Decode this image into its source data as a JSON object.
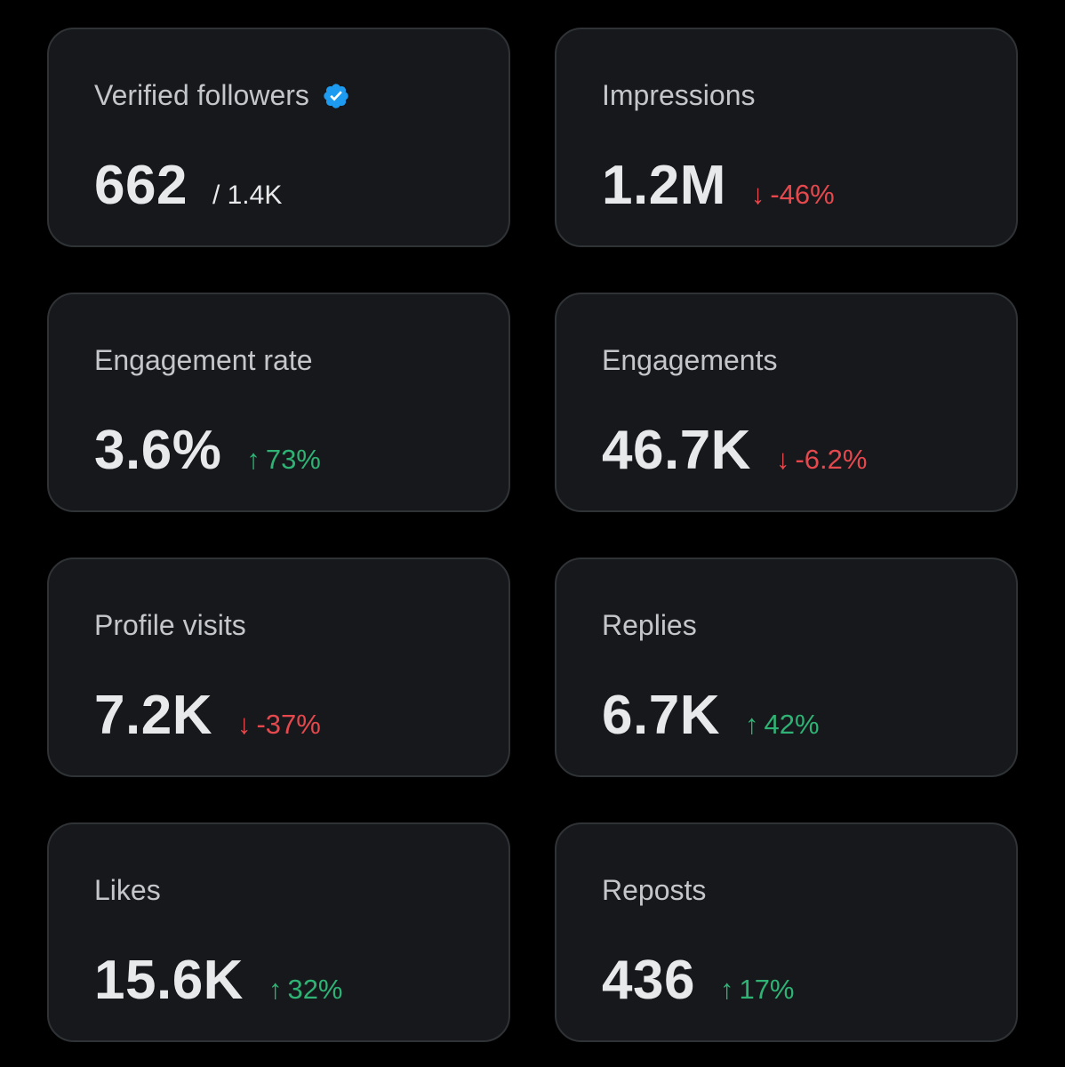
{
  "colors": {
    "background": "#000000",
    "card": "#16181c",
    "card_border": "#2f3336",
    "verified_badge": "#1d9bf0",
    "positive": "#2fb374",
    "negative": "#e5484d"
  },
  "cards": [
    {
      "label": "Verified followers",
      "value": "662",
      "total": "/ 1.4K",
      "icon": "verified-badge-icon"
    },
    {
      "label": "Impressions",
      "value": "1.2M",
      "arrow": "↓",
      "change": "-46%",
      "direction": "down"
    },
    {
      "label": "Engagement rate",
      "value": "3.6%",
      "arrow": "↑",
      "change": "73%",
      "direction": "up"
    },
    {
      "label": "Engagements",
      "value": "46.7K",
      "arrow": "↓",
      "change": "-6.2%",
      "direction": "down"
    },
    {
      "label": "Profile visits",
      "value": "7.2K",
      "arrow": "↓",
      "change": "-37%",
      "direction": "down"
    },
    {
      "label": "Replies",
      "value": "6.7K",
      "arrow": "↑",
      "change": "42%",
      "direction": "up"
    },
    {
      "label": "Likes",
      "value": "15.6K",
      "arrow": "↑",
      "change": "32%",
      "direction": "up"
    },
    {
      "label": "Reposts",
      "value": "436",
      "arrow": "↑",
      "change": "17%",
      "direction": "up"
    }
  ]
}
